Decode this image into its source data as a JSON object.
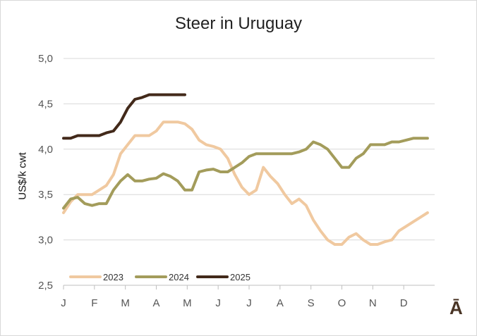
{
  "chart_data": {
    "type": "line",
    "title": "Steer in Uruguay",
    "ylabel": "US$/k cwt",
    "xlabel": "",
    "ylim": [
      2.5,
      5.0
    ],
    "yticks": [
      "2,5",
      "3,0",
      "3,5",
      "4,0",
      "4,5",
      "5,0"
    ],
    "xticks": [
      "J",
      "F",
      "M",
      "A",
      "M",
      "J",
      "J",
      "A",
      "S",
      "O",
      "N",
      "D"
    ],
    "x_weeks_in_year": 52,
    "grid": "horizontal",
    "legend": "bottom-left",
    "series": [
      {
        "name": "2023",
        "color": "#f0c9a0",
        "x": [
          0,
          1,
          2,
          3,
          4,
          5,
          6,
          7,
          8,
          9,
          10,
          11,
          12,
          13,
          14,
          15,
          16,
          17,
          18,
          19,
          20,
          21,
          22,
          23,
          24,
          25,
          26,
          27,
          28,
          29,
          30,
          31,
          32,
          33,
          34,
          35,
          36,
          37,
          38,
          39,
          40,
          41,
          42,
          43,
          44,
          45,
          46,
          47,
          48,
          49,
          50,
          51
        ],
        "values": [
          3.3,
          3.42,
          3.5,
          3.5,
          3.5,
          3.55,
          3.6,
          3.72,
          3.95,
          4.05,
          4.15,
          4.15,
          4.15,
          4.2,
          4.3,
          4.3,
          4.3,
          4.28,
          4.22,
          4.1,
          4.05,
          4.03,
          4.0,
          3.9,
          3.72,
          3.58,
          3.5,
          3.55,
          3.8,
          3.7,
          3.62,
          3.5,
          3.4,
          3.45,
          3.38,
          3.22,
          3.1,
          3.0,
          2.95,
          2.95,
          3.03,
          3.07,
          3.0,
          2.95,
          2.95,
          2.98,
          3.0,
          3.1,
          3.15,
          3.2,
          3.25,
          3.3
        ]
      },
      {
        "name": "2024",
        "color": "#a39c5b",
        "x": [
          0,
          1,
          2,
          3,
          4,
          5,
          6,
          7,
          8,
          9,
          10,
          11,
          12,
          13,
          14,
          15,
          16,
          17,
          18,
          19,
          20,
          21,
          22,
          23,
          24,
          25,
          26,
          27,
          28,
          29,
          30,
          31,
          32,
          33,
          34,
          35,
          36,
          37,
          38,
          39,
          40,
          41,
          42,
          43,
          44,
          45,
          46,
          47,
          48,
          49,
          50,
          51
        ],
        "values": [
          3.35,
          3.45,
          3.47,
          3.4,
          3.38,
          3.4,
          3.4,
          3.55,
          3.65,
          3.72,
          3.65,
          3.65,
          3.67,
          3.68,
          3.73,
          3.7,
          3.65,
          3.55,
          3.55,
          3.75,
          3.77,
          3.78,
          3.75,
          3.75,
          3.8,
          3.85,
          3.92,
          3.95,
          3.95,
          3.95,
          3.95,
          3.95,
          3.95,
          3.97,
          4.0,
          4.08,
          4.05,
          4.0,
          3.9,
          3.8,
          3.8,
          3.9,
          3.95,
          4.05,
          4.05,
          4.05,
          4.08,
          4.08,
          4.1,
          4.12,
          4.12,
          4.12
        ]
      },
      {
        "name": "2025",
        "color": "#42291a",
        "x": [
          0,
          1,
          2,
          3,
          4,
          5,
          6,
          7,
          8,
          9,
          10,
          11,
          12,
          13,
          14,
          15,
          16,
          17
        ],
        "values": [
          4.12,
          4.12,
          4.15,
          4.15,
          4.15,
          4.15,
          4.18,
          4.2,
          4.3,
          4.45,
          4.55,
          4.57,
          4.6,
          4.6,
          4.6,
          4.6,
          4.6,
          4.6
        ]
      }
    ]
  },
  "brand": {
    "logo_text": "Ā"
  }
}
